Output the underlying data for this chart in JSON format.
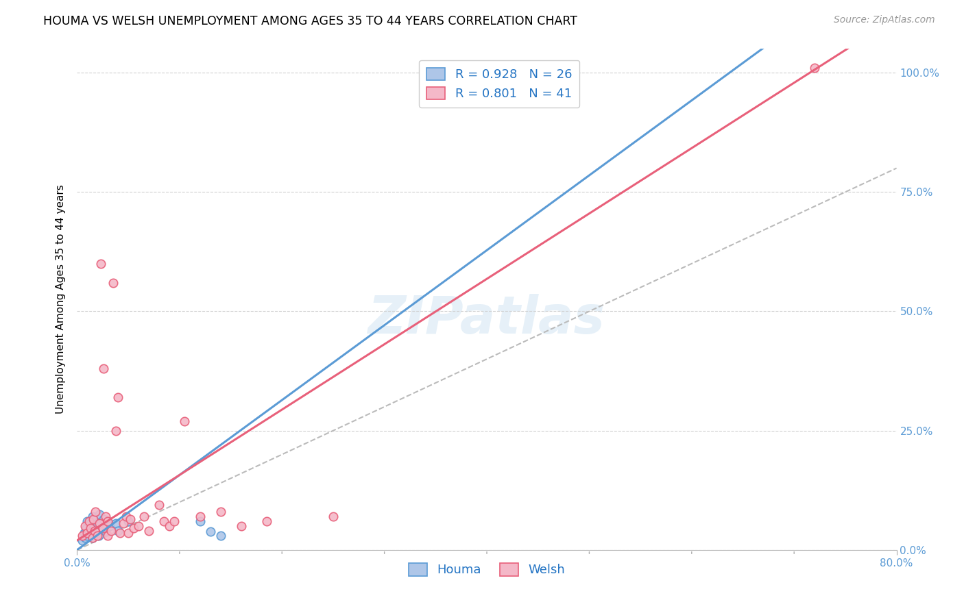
{
  "title": "HOUMA VS WELSH UNEMPLOYMENT AMONG AGES 35 TO 44 YEARS CORRELATION CHART",
  "source": "Source: ZipAtlas.com",
  "ylabel": "Unemployment Among Ages 35 to 44 years",
  "xmin": 0.0,
  "xmax": 0.8,
  "ymin": 0.0,
  "ymax": 1.05,
  "houma_color": "#aec6e8",
  "houma_edge_color": "#5b9bd5",
  "welsh_color": "#f4b8c8",
  "welsh_edge_color": "#e8607a",
  "regression_houma_color": "#5b9bd5",
  "regression_welsh_color": "#e8607a",
  "diagonal_color": "#bbbbbb",
  "R_houma": 0.928,
  "N_houma": 26,
  "R_welsh": 0.801,
  "N_welsh": 41,
  "legend_label_houma": "Houma",
  "legend_label_welsh": "Welsh",
  "houma_x": [
    0.005,
    0.007,
    0.008,
    0.009,
    0.01,
    0.01,
    0.012,
    0.013,
    0.015,
    0.015,
    0.017,
    0.018,
    0.02,
    0.021,
    0.022,
    0.025,
    0.026,
    0.028,
    0.03,
    0.032,
    0.038,
    0.04,
    0.05,
    0.12,
    0.13,
    0.14
  ],
  "houma_y": [
    0.02,
    0.035,
    0.025,
    0.045,
    0.03,
    0.06,
    0.04,
    0.055,
    0.025,
    0.07,
    0.05,
    0.038,
    0.055,
    0.03,
    0.075,
    0.045,
    0.065,
    0.038,
    0.06,
    0.05,
    0.055,
    0.04,
    0.06,
    0.06,
    0.038,
    0.03
  ],
  "welsh_x": [
    0.005,
    0.008,
    0.01,
    0.012,
    0.013,
    0.015,
    0.016,
    0.017,
    0.018,
    0.02,
    0.022,
    0.023,
    0.025,
    0.026,
    0.028,
    0.03,
    0.03,
    0.033,
    0.035,
    0.038,
    0.04,
    0.042,
    0.045,
    0.048,
    0.05,
    0.052,
    0.055,
    0.06,
    0.065,
    0.07,
    0.08,
    0.085,
    0.09,
    0.095,
    0.105,
    0.12,
    0.14,
    0.16,
    0.185,
    0.25,
    0.72
  ],
  "welsh_y": [
    0.03,
    0.05,
    0.035,
    0.06,
    0.045,
    0.025,
    0.065,
    0.04,
    0.08,
    0.03,
    0.055,
    0.6,
    0.045,
    0.38,
    0.07,
    0.03,
    0.06,
    0.04,
    0.56,
    0.25,
    0.32,
    0.035,
    0.055,
    0.07,
    0.035,
    0.065,
    0.045,
    0.05,
    0.07,
    0.04,
    0.095,
    0.06,
    0.05,
    0.06,
    0.27,
    0.07,
    0.08,
    0.05,
    0.06,
    0.07,
    1.01
  ],
  "marker_size": 80,
  "marker_linewidth": 1.2,
  "grid_color": "#d0d0d0",
  "bg_color": "#ffffff",
  "title_fontsize": 12.5,
  "axis_fontsize": 11,
  "legend_fontsize": 13,
  "source_fontsize": 10,
  "watermark_text": "ZIPatlas",
  "watermark_fontsize": 55,
  "watermark_color": "#c8dff0",
  "watermark_alpha": 0.45,
  "ytick_values": [
    0.0,
    0.25,
    0.5,
    0.75,
    1.0
  ],
  "ytick_labels": [
    "0.0%",
    "25.0%",
    "50.0%",
    "75.0%",
    "100.0%"
  ],
  "xtick_values": [
    0.0,
    0.8
  ],
  "xtick_labels": [
    "0.0%",
    "80.0%"
  ],
  "extra_xticks": [
    0.1,
    0.2,
    0.3,
    0.4,
    0.5,
    0.6,
    0.7
  ]
}
